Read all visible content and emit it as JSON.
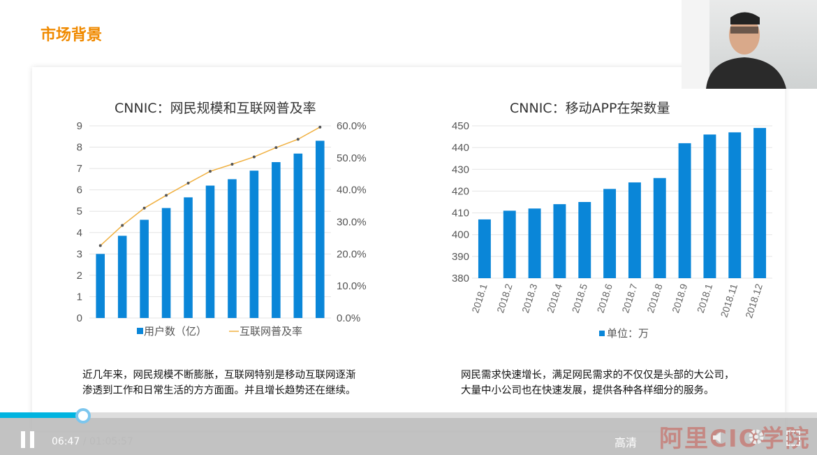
{
  "slide": {
    "title": "市场背景"
  },
  "chart_data": [
    {
      "type": "bar+line",
      "title": "CNNIC：网民规模和互联网普及率",
      "categories": [
        "",
        "",
        "",
        "",
        "",
        "",
        "",
        "",
        "",
        "",
        ""
      ],
      "series": [
        {
          "name": "用户数（亿）",
          "type": "bar",
          "axis": "left",
          "values": [
            3.0,
            3.85,
            4.6,
            5.15,
            5.65,
            6.2,
            6.5,
            6.9,
            7.3,
            7.7,
            8.3
          ],
          "color": "#0a86d8"
        },
        {
          "name": "互联网普及率",
          "type": "line",
          "axis": "right",
          "values": [
            22.6,
            28.9,
            34.3,
            38.3,
            42.1,
            45.8,
            48.0,
            50.3,
            53.2,
            55.8,
            59.6
          ],
          "color": "#f0b040"
        }
      ],
      "ylim": [
        0,
        9
      ],
      "yticks": [
        "0",
        "1",
        "2",
        "3",
        "4",
        "5",
        "6",
        "7",
        "8",
        "9"
      ],
      "y2lim": [
        0,
        60
      ],
      "y2ticks": [
        "0.0%",
        "10.0%",
        "20.0%",
        "30.0%",
        "40.0%",
        "50.0%",
        "60.0%"
      ],
      "grid": true,
      "legend": "bottom"
    },
    {
      "type": "bar",
      "title": "CNNIC：移动APP在架数量",
      "categories": [
        "2018.1",
        "2018.2",
        "2018.3",
        "2018.4",
        "2018.5",
        "2018.6",
        "2018.7",
        "2018.8",
        "2018.9",
        "2018.1",
        "2018.11",
        "2018.12"
      ],
      "series": [
        {
          "name": "单位：万",
          "values": [
            407,
            411,
            412,
            414,
            415,
            421,
            424,
            426,
            442,
            446,
            447,
            449
          ],
          "color": "#0a86d8"
        }
      ],
      "ylim": [
        380,
        450
      ],
      "yticks": [
        "380",
        "390",
        "400",
        "410",
        "420",
        "430",
        "440",
        "450"
      ],
      "grid": true,
      "legend": "bottom"
    }
  ],
  "text": {
    "left": "近几年来，网民规模不断膨胀，互联网特别是移动互联网逐渐渗透到工作和日常生活的方方面面。并且增长趋势还在继续。",
    "right": "网民需求快速增长，满足网民需求的不仅仅是头部的大公司，大量中小公司也在快速发展，提供各种各样细分的服务。"
  },
  "player": {
    "current": "06:47",
    "duration": "/ 01:05:57",
    "quality": "高清",
    "watermark": "阿里CIO学院",
    "progress_fraction": 0.103
  }
}
